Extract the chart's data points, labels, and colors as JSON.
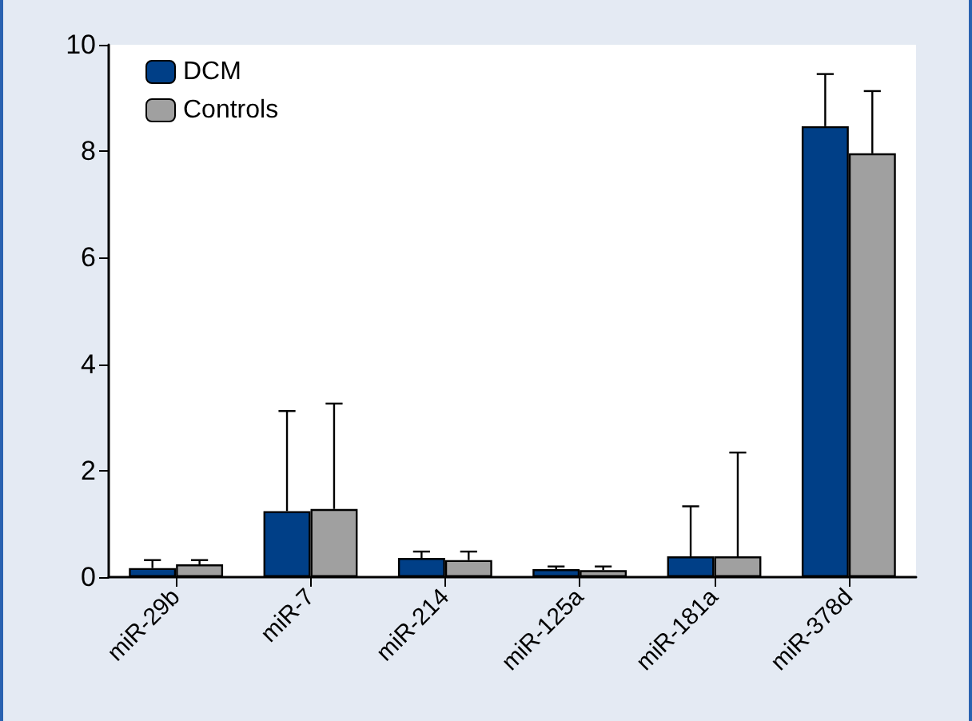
{
  "chart_data": {
    "type": "bar",
    "categories": [
      "miR-29b",
      "miR-7",
      "miR-214",
      "miR-125a",
      "miR-181a",
      "miR-378d"
    ],
    "series": [
      {
        "name": "DCM",
        "color": "#003f87",
        "values": [
          0.17,
          1.24,
          0.36,
          0.15,
          0.39,
          8.47
        ],
        "errors": [
          [
            0.17,
            0.32
          ],
          [
            1.24,
            3.12
          ],
          [
            0.36,
            0.48
          ],
          [
            0.15,
            0.2
          ],
          [
            0.39,
            1.33
          ],
          [
            8.47,
            9.45
          ]
        ]
      },
      {
        "name": "Controls",
        "color": "#a0a0a0",
        "values": [
          0.24,
          1.28,
          0.32,
          0.13,
          0.39,
          7.96
        ],
        "errors": [
          [
            0.24,
            0.32
          ],
          [
            1.28,
            3.26
          ],
          [
            0.32,
            0.48
          ],
          [
            0.13,
            0.2
          ],
          [
            0.39,
            2.34
          ],
          [
            7.96,
            9.13
          ]
        ]
      }
    ],
    "ylim": [
      0,
      10
    ],
    "yticks": [
      0,
      2,
      4,
      6,
      8,
      10
    ],
    "grid": false,
    "legend": "top left"
  }
}
